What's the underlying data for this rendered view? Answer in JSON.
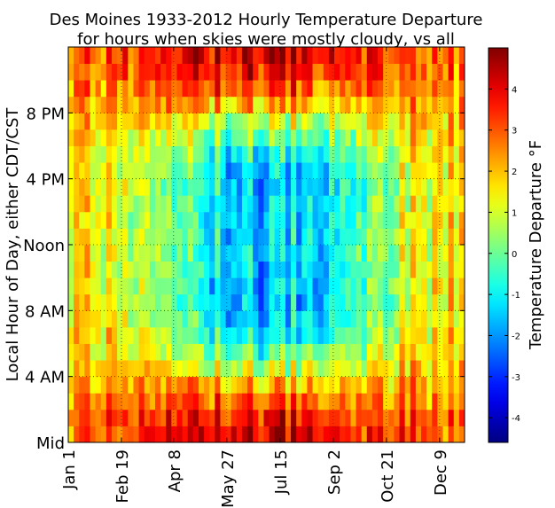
{
  "chart_data": {
    "type": "heatmap",
    "title": "Des Moines 1933-2012 Hourly Temperature Departure",
    "subtitle": "for hours when skies were mostly cloudy, vs all",
    "ylabel": "Local Hour of Day, either CDT/CST",
    "colorbar_label": "Temperature Departure °F",
    "x_tick_labels": [
      "Jan 1",
      "Feb 19",
      "Apr 8",
      "May 27",
      "Jul 15",
      "Sep 2",
      "Oct 21",
      "Dec 9"
    ],
    "x_tick_days": [
      1,
      50,
      98,
      147,
      196,
      245,
      294,
      343
    ],
    "y_tick_labels": [
      "Mid",
      "4 AM",
      "8 AM",
      "Noon",
      "4 PM",
      "8 PM"
    ],
    "y_tick_hours": [
      0,
      4,
      8,
      12,
      16,
      20
    ],
    "x_range_days": [
      1,
      366
    ],
    "week_count": 73,
    "hours": 24,
    "colorbar_ticks": [
      -4,
      -3,
      -2,
      -1,
      0,
      1,
      2,
      3,
      4
    ],
    "vmin": -4.6,
    "vmax": 5.0,
    "grid": true,
    "colormap": "jet",
    "grid_line_color": "#333333"
  }
}
